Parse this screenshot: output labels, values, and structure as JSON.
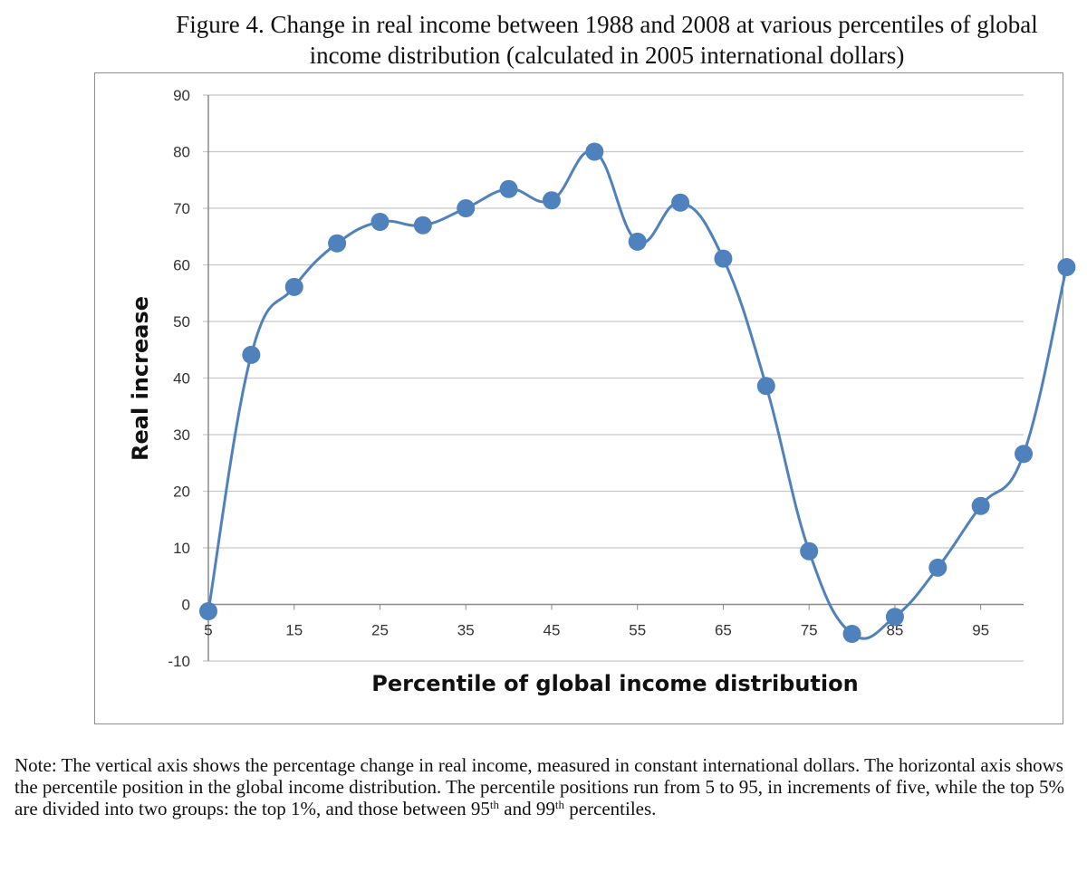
{
  "figure": {
    "title_line1": "Figure 4. Change in real income between 1988 and 2008 at various percentiles of global",
    "title_line2": "income distribution (calculated in 2005 international dollars)"
  },
  "note": {
    "part1": "Note: The vertical axis shows the percentage change in real income, measured in constant international dollars. The horizontal axis shows the percentile position in the global income distribution. The percentile positions run from 5 to 95, in increments of five, while the top 5% are divided into two groups: the top 1%, and those between 95",
    "sup1": "th",
    "part2": " and 99",
    "sup2": "th",
    "part3": " percentiles."
  },
  "chart_data": {
    "type": "line",
    "smooth": true,
    "marker": "circle",
    "color": "#4f81bd",
    "title": "",
    "xlabel": "Percentile of global income distribution",
    "ylabel": "Real increase",
    "x_tick_labels": [
      "5",
      "15",
      "25",
      "35",
      "45",
      "55",
      "65",
      "75",
      "85",
      "95"
    ],
    "y_ticks": [
      -10,
      0,
      10,
      20,
      30,
      40,
      50,
      60,
      70,
      80,
      90
    ],
    "ylim": [
      -10,
      90
    ],
    "grid": "horizontal",
    "legend": "none",
    "series": [
      {
        "categories": [
          "5",
          "10",
          "15",
          "20",
          "25",
          "30",
          "35",
          "40",
          "45",
          "50",
          "55",
          "60",
          "65",
          "70",
          "75",
          "80",
          "85",
          "90",
          "95",
          "99",
          "100"
        ],
        "values": [
          -1.2,
          44.1,
          56.1,
          63.8,
          67.6,
          67.0,
          70.0,
          73.4,
          71.4,
          80.0,
          64.1,
          71.0,
          61.1,
          38.6,
          9.4,
          -5.2,
          -2.2,
          6.5,
          17.4,
          26.6,
          59.6
        ]
      }
    ]
  }
}
